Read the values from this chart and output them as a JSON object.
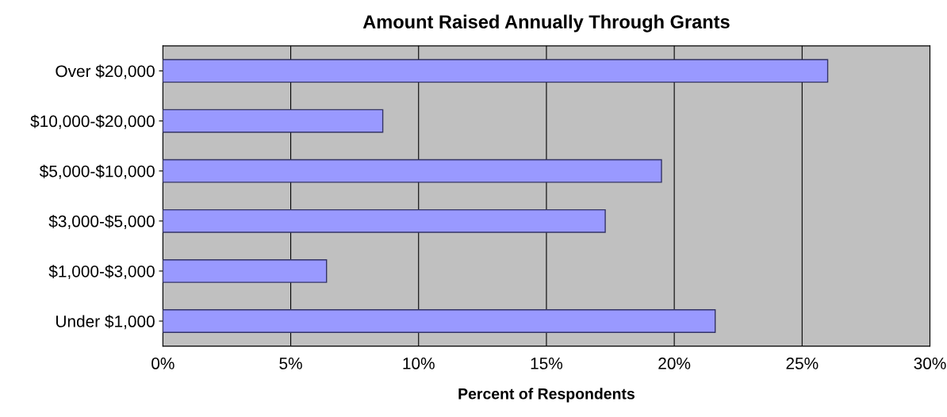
{
  "chart_data": {
    "type": "bar",
    "orientation": "horizontal",
    "title": "Amount Raised Annually Through Grants",
    "xlabel": "Percent of Respondents",
    "categories": [
      "Over $20,000",
      "$10,000-$20,000",
      "$5,000-$10,000",
      "$3,000-$5,000",
      "$1,000-$3,000",
      "Under $1,000"
    ],
    "values": [
      26.0,
      8.6,
      19.5,
      17.3,
      6.4,
      21.6
    ],
    "color": "#9999ff",
    "xlim": [
      0,
      30
    ],
    "xticks": [
      {
        "value": 0,
        "label": "0%"
      },
      {
        "value": 5,
        "label": "5%"
      },
      {
        "value": 10,
        "label": "10%"
      },
      {
        "value": 15,
        "label": "15%"
      },
      {
        "value": 20,
        "label": "20%"
      },
      {
        "value": 25,
        "label": "25%"
      },
      {
        "value": 30,
        "label": "30%"
      }
    ],
    "grid": "x"
  }
}
